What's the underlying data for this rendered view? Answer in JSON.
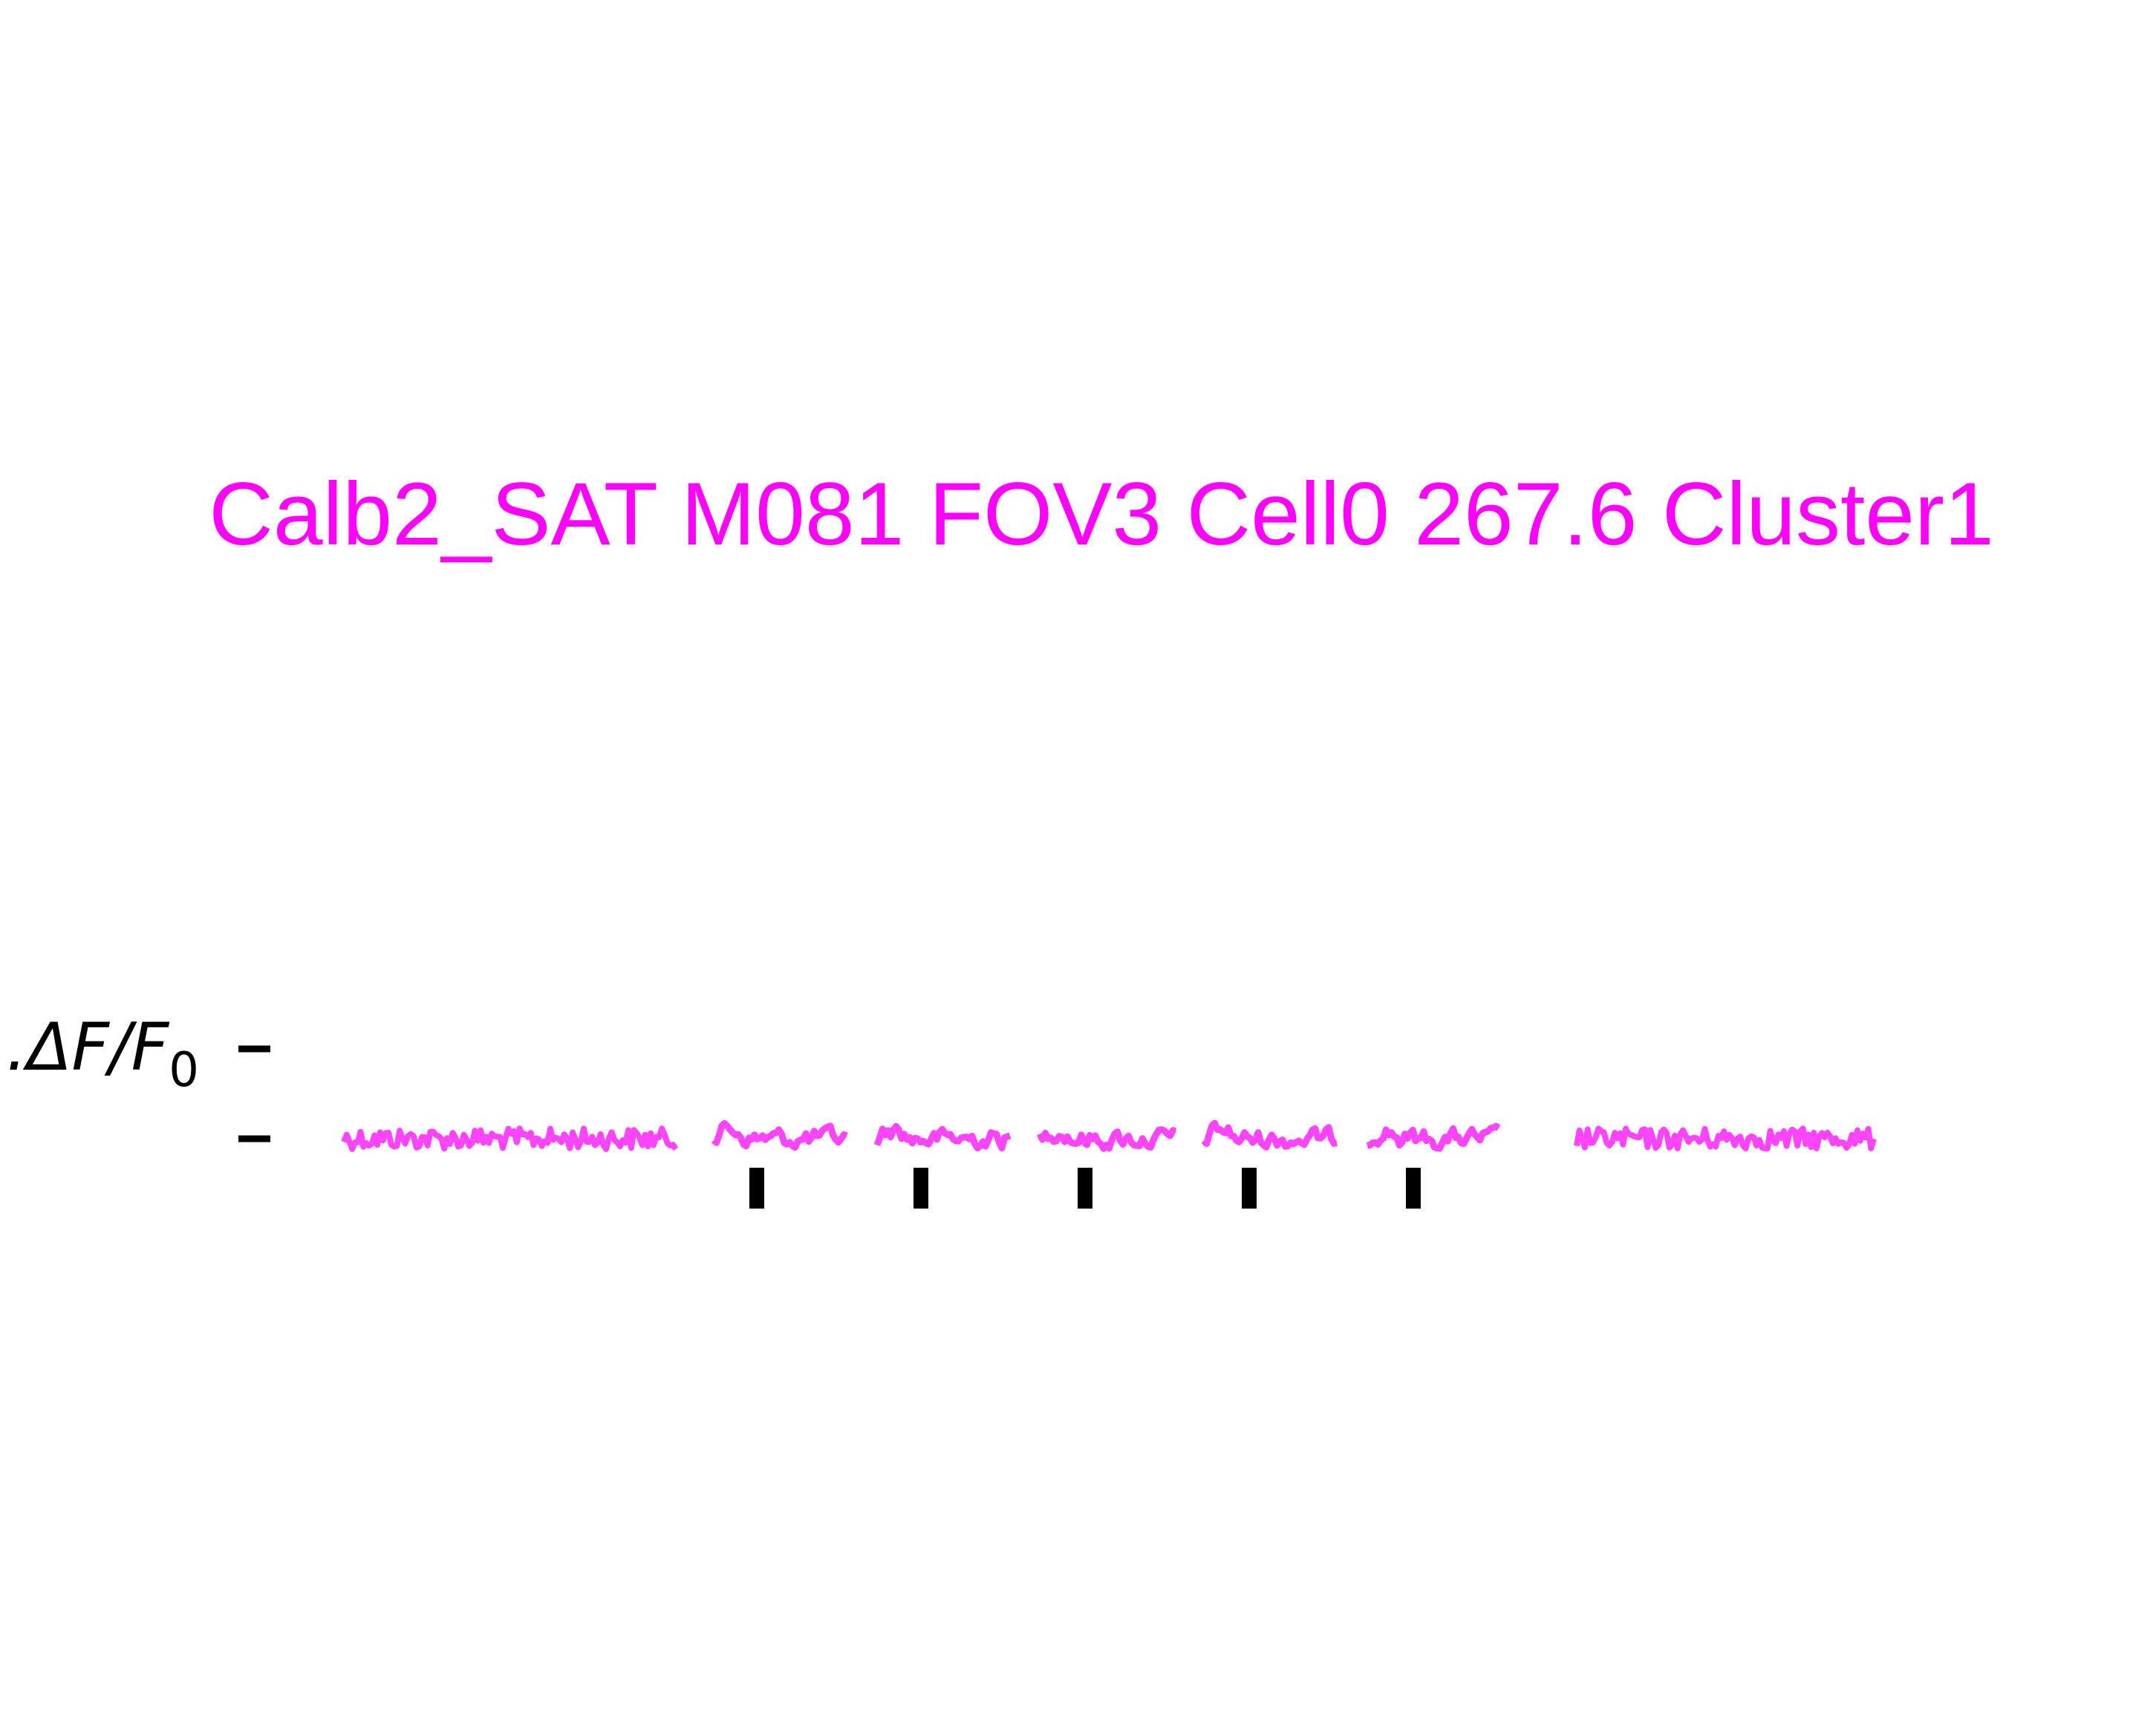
{
  "figure": {
    "title": "Calb2_SAT M081 FOV3 Cell0 267.6 Cluster1",
    "scale_label_main": ".ΔF/F",
    "scale_label_sub": "0"
  },
  "colors": {
    "trace": "#ff44ff",
    "title": "#ff00ff",
    "markers": "#000000",
    "background": "#ffffff"
  },
  "chart_data": {
    "type": "line",
    "title": "Calb2_SAT M081 FOV3 Cell0 267.6 Cluster1",
    "xlabel": "",
    "ylabel": "",
    "axes_visible": false,
    "grid": false,
    "scale_bar": {
      "label": ".ΔF/F0",
      "ticks": [
        0,
        1
      ]
    },
    "baseline": 0,
    "segments": [
      {
        "name": "",
        "kind": "pre-baseline",
        "points": 120,
        "noise": "high"
      },
      {
        "name": "",
        "kind": "stimulus-response",
        "points": 50,
        "noise": "low",
        "marker": true
      },
      {
        "name": "",
        "kind": "stimulus-response",
        "points": 50,
        "noise": "low",
        "marker": true
      },
      {
        "name": "",
        "kind": "stimulus-response",
        "points": 50,
        "noise": "low",
        "marker": true
      },
      {
        "name": "",
        "kind": "stimulus-response",
        "points": 50,
        "noise": "low",
        "marker": true
      },
      {
        "name": "",
        "kind": "stimulus-response",
        "points": 50,
        "noise": "low",
        "marker": true
      },
      {
        "name": "",
        "kind": "post-baseline",
        "points": 110,
        "noise": "high"
      }
    ],
    "stimulus_markers": [
      1,
      2,
      3,
      4,
      5
    ]
  }
}
